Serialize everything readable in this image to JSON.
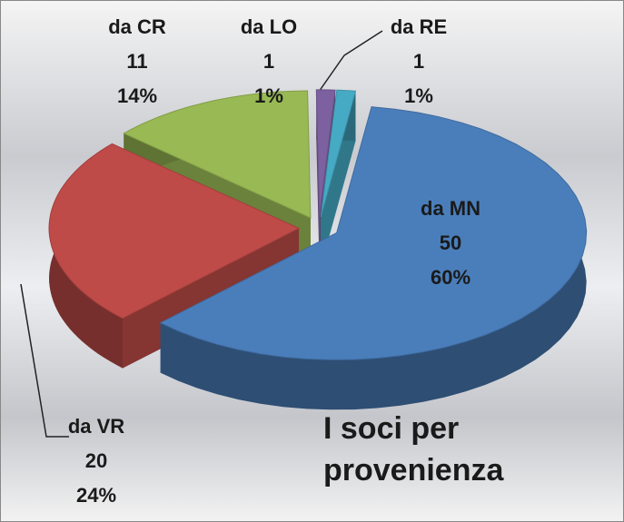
{
  "chart_data": {
    "type": "pie",
    "title": "I soci per provenienza",
    "categories": [
      "da MN",
      "da VR",
      "da CR",
      "da LO",
      "da RE"
    ],
    "values": [
      50,
      20,
      11,
      1,
      1
    ],
    "percentages": [
      60,
      24,
      14,
      1,
      1
    ],
    "percentage_labels": [
      "60%",
      "24%",
      "14%",
      "1%",
      "1%"
    ],
    "colors": [
      "#4a7ebb",
      "#be4b48",
      "#98b954",
      "#7d60a0",
      "#46aac5"
    ]
  }
}
